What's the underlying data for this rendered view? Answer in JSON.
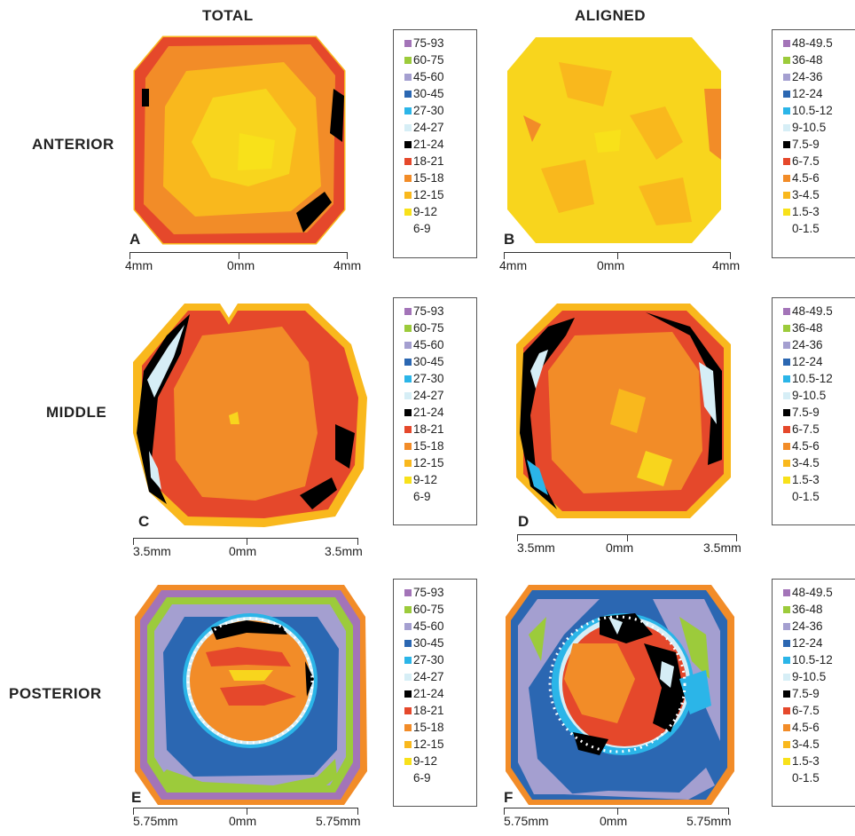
{
  "columns": {
    "total": "TOTAL",
    "aligned": "ALIGNED"
  },
  "rows": {
    "anterior": "ANTERIOR",
    "middle": "MIDDLE",
    "posterior": "POSTERIOR"
  },
  "legend_total": [
    "75-93",
    "60-75",
    "45-60",
    "30-45",
    "27-30",
    "24-27",
    "21-24",
    "18-21",
    "15-18",
    "12-15",
    "9-12",
    "6-9"
  ],
  "legend_aligned": [
    "48-49.5",
    "36-48",
    "24-36",
    "12-24",
    "10.5-12",
    "9-10.5",
    "7.5-9",
    "6-7.5",
    "4.5-6",
    "3-4.5",
    "1.5-3",
    "0-1.5"
  ],
  "legend_colors": [
    "#a374b8",
    "#9ccb3b",
    "#a49fd0",
    "#2b67b2",
    "#2bb5e8",
    "#d6eef6",
    "#000000",
    "#e5482b",
    "#f28c28",
    "#f9b81d",
    "#f8e11a",
    ""
  ],
  "panels": {
    "a": {
      "letter": "A",
      "scale": [
        "4mm",
        "0mm",
        "4mm"
      ]
    },
    "b": {
      "letter": "B",
      "scale": [
        "4mm",
        "0mm",
        "4mm"
      ]
    },
    "c": {
      "letter": "C",
      "scale": [
        "3.5mm",
        "0mm",
        "3.5mm"
      ]
    },
    "d": {
      "letter": "D",
      "scale": [
        "3.5mm",
        "0mm",
        "3.5mm"
      ]
    },
    "e": {
      "letter": "E",
      "scale": [
        "5.75mm",
        "0mm",
        "5.75mm"
      ]
    },
    "f": {
      "letter": "F",
      "scale": [
        "5.75mm",
        "0mm",
        "5.75mm"
      ]
    }
  }
}
